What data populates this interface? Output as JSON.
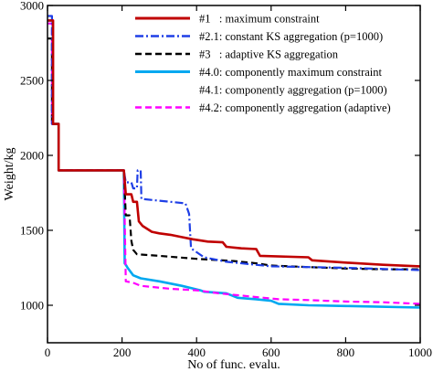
{
  "chart_data": {
    "type": "line",
    "xlabel": "No of func. evalu.",
    "ylabel": "Weight/kg",
    "xlim": [
      0,
      1000
    ],
    "ylim": [
      750,
      3000
    ],
    "xticks": [
      0,
      200,
      400,
      600,
      800,
      1000
    ],
    "yticks": [
      1000,
      1500,
      2000,
      2500,
      3000
    ],
    "grid": false,
    "legend_position": "top-right",
    "series": [
      {
        "name": "#1   : maximum constraint",
        "color": "#c00000",
        "dash": "solid",
        "points": [
          [
            0,
            2900
          ],
          [
            15,
            2900
          ],
          [
            15,
            2210
          ],
          [
            30,
            2210
          ],
          [
            30,
            1900
          ],
          [
            205,
            1900
          ],
          [
            210,
            1740
          ],
          [
            225,
            1740
          ],
          [
            230,
            1690
          ],
          [
            240,
            1690
          ],
          [
            245,
            1560
          ],
          [
            255,
            1530
          ],
          [
            280,
            1490
          ],
          [
            300,
            1480
          ],
          [
            330,
            1470
          ],
          [
            360,
            1455
          ],
          [
            390,
            1440
          ],
          [
            430,
            1425
          ],
          [
            470,
            1420
          ],
          [
            480,
            1390
          ],
          [
            520,
            1380
          ],
          [
            560,
            1375
          ],
          [
            570,
            1330
          ],
          [
            700,
            1320
          ],
          [
            710,
            1300
          ],
          [
            800,
            1285
          ],
          [
            900,
            1270
          ],
          [
            1000,
            1260
          ]
        ]
      },
      {
        "name": "#2.1: constant KS aggregation (p=1000)",
        "color": "#1f3fe6",
        "dash": "dashdot",
        "points": [
          [
            0,
            2930
          ],
          [
            12,
            2930
          ],
          [
            12,
            2210
          ],
          [
            30,
            2210
          ],
          [
            30,
            1900
          ],
          [
            205,
            1900
          ],
          [
            210,
            1820
          ],
          [
            225,
            1820
          ],
          [
            230,
            1780
          ],
          [
            240,
            1780
          ],
          [
            242,
            1900
          ],
          [
            250,
            1900
          ],
          [
            252,
            1710
          ],
          [
            290,
            1700
          ],
          [
            330,
            1690
          ],
          [
            370,
            1680
          ],
          [
            380,
            1610
          ],
          [
            385,
            1380
          ],
          [
            420,
            1320
          ],
          [
            480,
            1290
          ],
          [
            600,
            1260
          ],
          [
            800,
            1250
          ],
          [
            1000,
            1235
          ]
        ]
      },
      {
        "name": "#3   : adaptive KS aggregation",
        "color": "#000000",
        "dash": "dash",
        "points": [
          [
            0,
            2780
          ],
          [
            12,
            2780
          ],
          [
            12,
            2210
          ],
          [
            30,
            2210
          ],
          [
            30,
            1900
          ],
          [
            205,
            1900
          ],
          [
            210,
            1600
          ],
          [
            220,
            1600
          ],
          [
            225,
            1430
          ],
          [
            230,
            1370
          ],
          [
            240,
            1340
          ],
          [
            300,
            1330
          ],
          [
            400,
            1310
          ],
          [
            500,
            1295
          ],
          [
            560,
            1280
          ],
          [
            600,
            1265
          ],
          [
            700,
            1255
          ],
          [
            800,
            1245
          ],
          [
            900,
            1240
          ],
          [
            1000,
            1240
          ]
        ]
      },
      {
        "name": "#4.0: componently maximum constraint",
        "color": "#00a8f0",
        "dash": "solid",
        "points": [
          [
            0,
            2900
          ],
          [
            14,
            2900
          ],
          [
            14,
            2210
          ],
          [
            30,
            2210
          ],
          [
            30,
            1900
          ],
          [
            205,
            1900
          ],
          [
            207,
            1280
          ],
          [
            210,
            1270
          ],
          [
            215,
            1250
          ],
          [
            230,
            1200
          ],
          [
            250,
            1180
          ],
          [
            300,
            1160
          ],
          [
            360,
            1130
          ],
          [
            410,
            1100
          ],
          [
            420,
            1090
          ],
          [
            480,
            1080
          ],
          [
            510,
            1050
          ],
          [
            560,
            1040
          ],
          [
            600,
            1030
          ],
          [
            620,
            1010
          ],
          [
            700,
            1000
          ],
          [
            800,
            995
          ],
          [
            1000,
            985
          ]
        ]
      },
      {
        "name": "#4.2: componently aggregation (adaptive)",
        "color": "#ff00ff",
        "dash": "dash",
        "points": [
          [
            0,
            2880
          ],
          [
            12,
            2880
          ],
          [
            12,
            2210
          ],
          [
            30,
            2210
          ],
          [
            30,
            1900
          ],
          [
            205,
            1900
          ],
          [
            210,
            1160
          ],
          [
            230,
            1150
          ],
          [
            250,
            1130
          ],
          [
            330,
            1110
          ],
          [
            400,
            1100
          ],
          [
            460,
            1080
          ],
          [
            540,
            1060
          ],
          [
            620,
            1040
          ],
          [
            700,
            1035
          ],
          [
            750,
            1030
          ],
          [
            800,
            1025
          ],
          [
            900,
            1020
          ],
          [
            1000,
            1010
          ]
        ]
      }
    ],
    "legend_entries": [
      {
        "label": "#1   : maximum constraint",
        "color": "#c00000",
        "dash": "solid"
      },
      {
        "label": "#2.1: constant KS aggregation (p=1000)",
        "color": "#1f3fe6",
        "dash": "dashdot"
      },
      {
        "label": "#3   : adaptive KS aggregation",
        "color": "#000000",
        "dash": "dash"
      },
      {
        "label": "#4.0: componently maximum constraint",
        "color": "#00a8f0",
        "dash": "solid"
      },
      {
        "label": "#4.1: componently aggregation (p=1000)",
        "color": null,
        "dash": "none"
      },
      {
        "label": "#4.2: componently aggregation (adaptive)",
        "color": "#ff00ff",
        "dash": "dash"
      }
    ]
  }
}
